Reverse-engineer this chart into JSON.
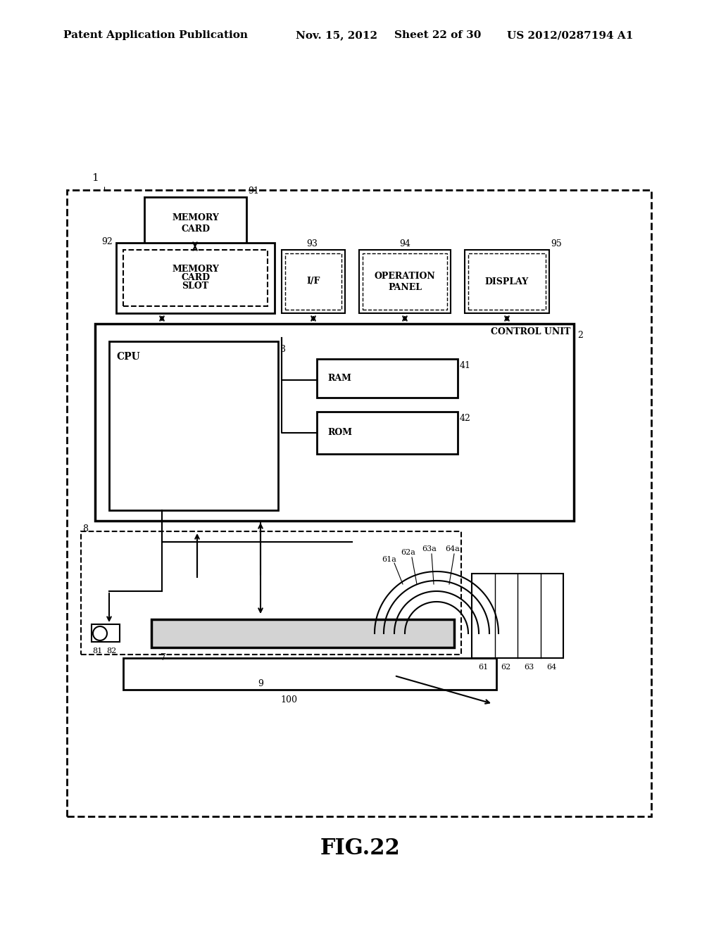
{
  "bg_color": "#ffffff",
  "header_text": "Patent Application Publication",
  "header_date": "Nov. 15, 2012",
  "header_sheet": "Sheet 22 of 30",
  "header_patent": "US 2012/0287194 A1",
  "fig_label": "FIG.22",
  "title_fontsize": 11,
  "label_fontsize": 9
}
